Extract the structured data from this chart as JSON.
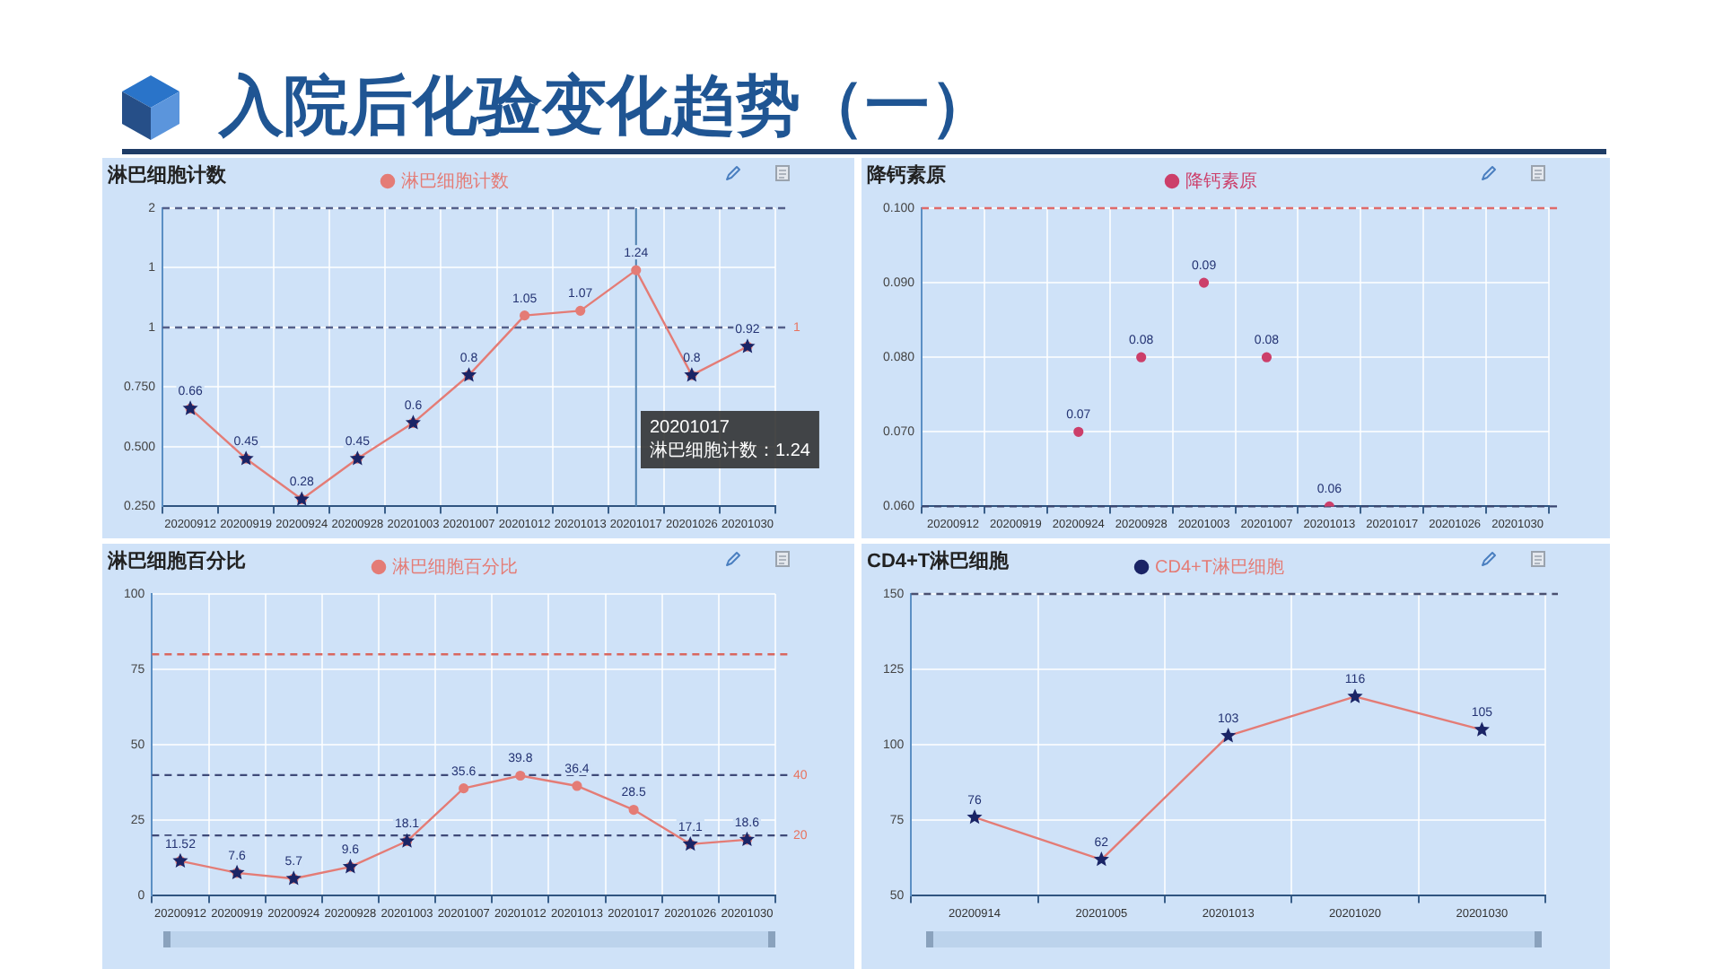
{
  "chart_data": [
    {
      "type": "other",
      "title": "入院后化验变化趋势（一）"
    },
    {
      "type": "line",
      "title": "淋巴细胞计数",
      "categories": [
        "20200912",
        "20200919",
        "20200924",
        "20200928",
        "20201003",
        "20201007",
        "20201012",
        "20201013",
        "20201017",
        "20201026",
        "20201030"
      ],
      "series": [
        {
          "name": "淋巴细胞计数",
          "color": "#e47c76",
          "marker": "circle",
          "values": [
            0.66,
            0.45,
            0.28,
            0.45,
            0.6,
            0.8,
            1.05,
            1.07,
            1.24,
            0.8,
            0.92
          ]
        },
        {
          "type": "scatter",
          "color": "#1a2466",
          "marker": "star",
          "data_labels": false,
          "values": [
            0.66,
            0.45,
            0.28,
            0.45,
            0.6,
            0.8,
            null,
            null,
            null,
            0.8,
            0.92
          ]
        }
      ],
      "ylim": [
        0.25,
        1.5
      ],
      "yticks": [
        {
          "value": 0.25,
          "label": "0.250"
        },
        {
          "value": 0.5,
          "label": "0.500"
        },
        {
          "value": 0.75,
          "label": "0.750"
        },
        1,
        {
          "value": 1.25,
          "label": "1"
        },
        {
          "value": 1.5,
          "label": "2"
        }
      ],
      "ref_lines": [
        {
          "axis": "y",
          "value": 1.5,
          "color": "#55608a",
          "line_style": "dashed"
        },
        {
          "axis": "y",
          "value": 1,
          "label": "1",
          "color": "#55608a",
          "line_style": "dashed"
        },
        {
          "axis": "x",
          "value": "20201017",
          "color": "#4d7fae",
          "line_style": "solid"
        }
      ],
      "annotations": [
        "20201017\n淋巴细胞计数：1.24"
      ],
      "grid": true,
      "legend": "top",
      "data_labels": true
    },
    {
      "type": "scatter",
      "title": "降钙素原",
      "categories": [
        "20200912",
        "20200919",
        "20200924",
        "20200928",
        "20201003",
        "20201007",
        "20201013",
        "20201017",
        "20201026",
        "20201030"
      ],
      "series": [
        {
          "name": "降钙素原",
          "color": "#cc3f6a",
          "marker": "circle",
          "values": [
            null,
            null,
            0.07,
            0.08,
            0.09,
            0.08,
            0.06,
            null,
            null,
            null
          ]
        }
      ],
      "ylim": [
        0.06,
        0.1
      ],
      "yticks": [
        {
          "value": 0.06,
          "label": "0.060"
        },
        {
          "value": 0.07,
          "label": "0.070"
        },
        {
          "value": 0.08,
          "label": "0.080"
        },
        {
          "value": 0.09,
          "label": "0.090"
        },
        {
          "value": 0.1,
          "label": "0.100"
        }
      ],
      "ref_lines": [
        {
          "axis": "y",
          "value": 0.1,
          "color": "#e06a6a",
          "line_style": "dashed"
        },
        {
          "axis": "y",
          "value": 0.06,
          "color": "#3a4670",
          "line_style": "dashed"
        }
      ],
      "grid": true,
      "legend": "top",
      "data_labels": true
    },
    {
      "type": "line",
      "title": "淋巴细胞百分比",
      "categories": [
        "20200912",
        "20200919",
        "20200924",
        "20200928",
        "20201003",
        "20201007",
        "20201012",
        "20201013",
        "20201017",
        "20201026",
        "20201030"
      ],
      "series": [
        {
          "name": "淋巴细胞百分比",
          "color": "#e47c76",
          "marker": "circle",
          "values": [
            11.52,
            7.6,
            5.7,
            9.6,
            18.1,
            35.6,
            39.8,
            36.4,
            28.5,
            17.1,
            18.6
          ]
        },
        {
          "type": "scatter",
          "color": "#1a2466",
          "marker": "star",
          "data_labels": false,
          "values": [
            11.52,
            7.6,
            5.7,
            9.6,
            18.1,
            null,
            null,
            null,
            null,
            17.1,
            18.6
          ]
        }
      ],
      "ylim": [
        0,
        100
      ],
      "yticks": [
        0,
        25,
        50,
        75,
        100
      ],
      "ref_lines": [
        {
          "axis": "y",
          "value": 80,
          "color": "#d9675f",
          "line_style": "dashed"
        },
        {
          "axis": "y",
          "value": 40,
          "label": "40",
          "color": "#3f4a78",
          "line_style": "dashed"
        },
        {
          "axis": "y",
          "value": 20,
          "label": "20",
          "color": "#3f4a78",
          "line_style": "dashed"
        }
      ],
      "grid": true,
      "legend": "top",
      "data_labels": true
    },
    {
      "type": "line",
      "title": "CD4+T淋巴细胞",
      "categories": [
        "20200914",
        "20201005",
        "20201013",
        "20201020",
        "20201030"
      ],
      "series": [
        {
          "name": "CD4+T淋巴细胞",
          "color": "#e47c76",
          "colors": [
            "#1a2466",
            "#1a2466",
            "#1a2466",
            "#1a2466",
            "#1a2466"
          ],
          "marker": "star",
          "values": [
            76,
            62,
            103,
            116,
            105
          ]
        }
      ],
      "ylim": [
        50,
        150
      ],
      "yticks": [
        50,
        75,
        100,
        125,
        150
      ],
      "ref_lines": [
        {
          "axis": "y",
          "value": 150,
          "color": "#4a5070",
          "line_style": "dashed"
        }
      ],
      "grid": true,
      "legend": "top",
      "data_labels": true
    }
  ]
}
